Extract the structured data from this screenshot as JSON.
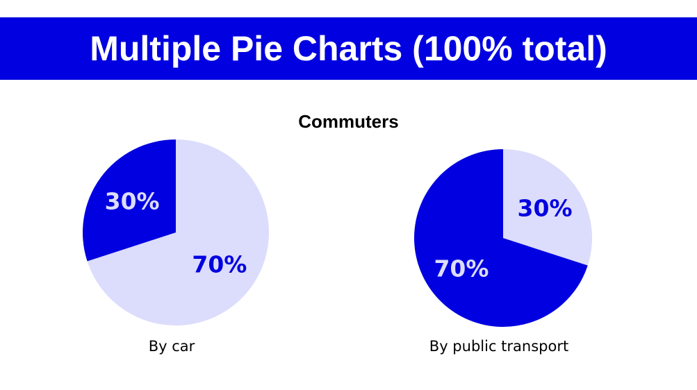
{
  "header": {
    "title": "Multiple Pie Charts (100% total)"
  },
  "colors": {
    "header_bg": "#0000e0",
    "dark_slice": "#0000e0",
    "light_slice": "#dcdcfc"
  },
  "chart_data": {
    "type": "pie",
    "title": "Commuters",
    "pies": [
      {
        "label": "By car",
        "slices": [
          {
            "value": 70,
            "label": "70%",
            "color": "#dcdcfc",
            "label_color": "#0000e0"
          },
          {
            "value": 30,
            "label": "30%",
            "color": "#0000e0",
            "label_color": "#dcdcfc"
          }
        ]
      },
      {
        "label": "By public transport",
        "slices": [
          {
            "value": 30,
            "label": "30%",
            "color": "#dcdcfc",
            "label_color": "#0000e0"
          },
          {
            "value": 70,
            "label": "70%",
            "color": "#0000e0",
            "label_color": "#dcdcfc"
          }
        ]
      }
    ]
  }
}
